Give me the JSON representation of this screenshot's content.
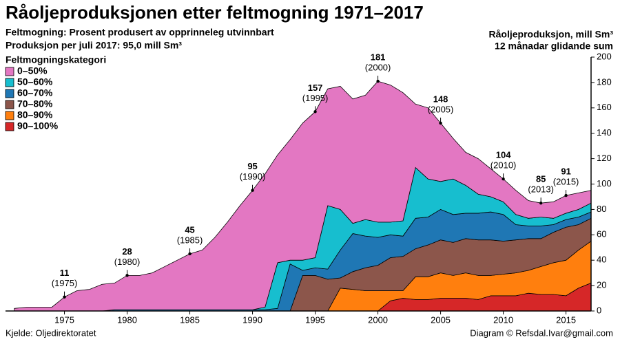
{
  "chart_data": {
    "type": "stacked-area",
    "title": "Råoljeproduksjonen etter feltmogning 1971–2017",
    "subtitle": [
      "Feltmogning: Prosent produsert av opprinneleg utvinnbart",
      "Produksjon per juli 2017: 95,0 mill Sm³"
    ],
    "y_axis_label": [
      "Råoljeproduksjon, mill Sm³",
      "12 månadar glidande sum"
    ],
    "legend_title": "Feltmogningskategori",
    "legend": "top-left",
    "source": "Kjelde: Oljedirektoratet",
    "credit": "Diagram © Refsdal.Ivar@gmail.com",
    "x": [
      1971,
      1972,
      1973,
      1974,
      1975,
      1976,
      1977,
      1978,
      1979,
      1980,
      1981,
      1982,
      1983,
      1984,
      1985,
      1986,
      1987,
      1988,
      1989,
      1990,
      1991,
      1992,
      1993,
      1994,
      1995,
      1996,
      1997,
      1998,
      1999,
      2000,
      2001,
      2002,
      2003,
      2004,
      2005,
      2006,
      2007,
      2008,
      2009,
      2010,
      2011,
      2012,
      2013,
      2014,
      2015,
      2016,
      2017
    ],
    "xlim": [
      1970.3,
      2017
    ],
    "xticks": [
      1975,
      1980,
      1985,
      1990,
      1995,
      2000,
      2005,
      2010,
      2015
    ],
    "ylim": [
      0,
      200
    ],
    "yticks": [
      0,
      20,
      40,
      60,
      80,
      100,
      120,
      140,
      160,
      180,
      200
    ],
    "series": [
      {
        "name": "0–50%",
        "color": "#e377c2",
        "values": [
          2,
          3,
          3,
          3,
          11,
          16,
          17,
          21,
          21,
          27,
          27,
          29,
          34,
          39,
          44,
          47,
          57,
          69,
          82,
          94,
          105,
          85,
          95,
          108,
          115,
          92,
          97,
          98,
          98,
          111,
          108,
          101,
          50,
          56,
          46,
          32,
          26,
          28,
          22,
          18,
          19,
          14,
          11,
          13,
          14,
          13,
          10
        ]
      },
      {
        "name": "50–60%",
        "color": "#17becf",
        "values": [
          0,
          0,
          0,
          0,
          0,
          0,
          0,
          0,
          0,
          0,
          0,
          0,
          0,
          0,
          0,
          0,
          0,
          0,
          0,
          0,
          2,
          36,
          3,
          8,
          8,
          50,
          32,
          8,
          13,
          12,
          10,
          12,
          40,
          30,
          22,
          28,
          22,
          15,
          12,
          10,
          8,
          6,
          7,
          5,
          5,
          6,
          7
        ]
      },
      {
        "name": "60–70%",
        "color": "#1f77b4",
        "values": [
          0,
          0,
          0,
          0,
          0,
          0,
          0,
          0,
          1,
          1,
          1,
          1,
          1,
          1,
          1,
          1,
          1,
          1,
          1,
          1,
          1,
          2,
          37,
          4,
          6,
          8,
          22,
          30,
          25,
          22,
          18,
          16,
          24,
          22,
          24,
          22,
          20,
          21,
          22,
          21,
          12,
          10,
          10,
          6,
          6,
          6,
          5
        ]
      },
      {
        "name": "70–80%",
        "color": "#8c564b",
        "values": [
          0,
          0,
          0,
          0,
          0,
          0,
          0,
          0,
          0,
          0,
          0,
          0,
          0,
          0,
          0,
          0,
          0,
          0,
          0,
          0,
          0,
          0,
          0,
          28,
          28,
          25,
          8,
          14,
          18,
          20,
          26,
          27,
          22,
          25,
          26,
          26,
          27,
          28,
          28,
          26,
          26,
          25,
          22,
          24,
          26,
          20,
          18
        ]
      },
      {
        "name": "80–90%",
        "color": "#ff7f0e",
        "values": [
          0,
          0,
          0,
          0,
          0,
          0,
          0,
          0,
          0,
          0,
          0,
          0,
          0,
          0,
          0,
          0,
          0,
          0,
          0,
          0,
          0,
          0,
          0,
          0,
          0,
          0,
          18,
          17,
          16,
          16,
          8,
          6,
          18,
          18,
          20,
          18,
          20,
          19,
          16,
          17,
          18,
          18,
          22,
          25,
          28,
          30,
          33
        ]
      },
      {
        "name": "90–100%",
        "color": "#d62728",
        "values": [
          0,
          0,
          0,
          0,
          0,
          0,
          0,
          0,
          0,
          0,
          0,
          0,
          0,
          0,
          0,
          0,
          0,
          0,
          0,
          0,
          0,
          0,
          0,
          0,
          0,
          0,
          0,
          0,
          0,
          0,
          8,
          10,
          9,
          9,
          10,
          10,
          10,
          9,
          12,
          12,
          12,
          14,
          13,
          13,
          12,
          18,
          22
        ]
      }
    ],
    "annotations": [
      {
        "x": 1975,
        "value": 11,
        "label": "(1975)"
      },
      {
        "x": 1980,
        "value": 28,
        "label": "(1980)"
      },
      {
        "x": 1985,
        "value": 45,
        "label": "(1985)"
      },
      {
        "x": 1990,
        "value": 95,
        "label": "(1990)"
      },
      {
        "x": 1995,
        "value": 157,
        "label": "(1995)"
      },
      {
        "x": 2000,
        "value": 181,
        "label": "(2000)"
      },
      {
        "x": 2005,
        "value": 148,
        "label": "(2005)"
      },
      {
        "x": 2010,
        "value": 104,
        "label": "(2010)"
      },
      {
        "x": 2013,
        "value": 85,
        "label": "(2013)"
      },
      {
        "x": 2015,
        "value": 91,
        "label": "(2015)"
      }
    ]
  }
}
